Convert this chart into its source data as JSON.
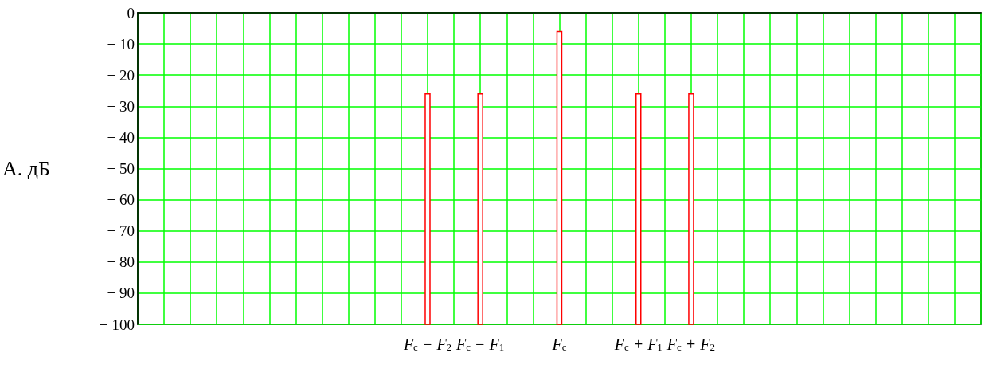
{
  "chart_data": {
    "type": "bar",
    "ylabel": "A. дБ",
    "categories": [
      null,
      null,
      null,
      null,
      null,
      null,
      null,
      null,
      null,
      null,
      null,
      "F$_{c}$ − F$_{2}$",
      null,
      "F$_{c}$ − F$_{1}$",
      null,
      null,
      "F$_{c}$",
      null,
      null,
      "F$_{c}$ + F$_{1}$",
      null,
      "F$_{c}$ + F$_{2}$",
      null,
      null,
      null,
      null,
      null,
      null,
      null,
      null,
      null,
      null,
      null
    ],
    "values": [
      null,
      null,
      null,
      null,
      null,
      null,
      null,
      null,
      null,
      null,
      null,
      74,
      null,
      74,
      null,
      null,
      94,
      null,
      null,
      74,
      null,
      74,
      null,
      null,
      null,
      null,
      null,
      null,
      null,
      null,
      null,
      null,
      null
    ],
    "base": [
      null,
      null,
      null,
      null,
      null,
      null,
      null,
      null,
      null,
      null,
      null,
      -100,
      null,
      -100,
      null,
      null,
      -100,
      null,
      null,
      -100,
      null,
      -100,
      null,
      null,
      null,
      null,
      null,
      null,
      null,
      null,
      null,
      null,
      null
    ],
    "color": "#ff0000",
    "ylim": [
      -100,
      0
    ],
    "yticks": [
      0,
      {
        "value": -10,
        "label": "− 10"
      },
      {
        "value": -20,
        "label": "− 20"
      },
      {
        "value": -30,
        "label": "− 30"
      },
      {
        "value": -40,
        "label": "− 40"
      },
      {
        "value": -50,
        "label": "− 50"
      },
      {
        "value": -60,
        "label": "− 60"
      },
      {
        "value": -70,
        "label": "− 70"
      },
      {
        "value": -80,
        "label": "− 80"
      },
      {
        "value": -90,
        "label": "− 90"
      },
      {
        "value": -100,
        "label": "− 100"
      }
    ],
    "grid": true
  }
}
